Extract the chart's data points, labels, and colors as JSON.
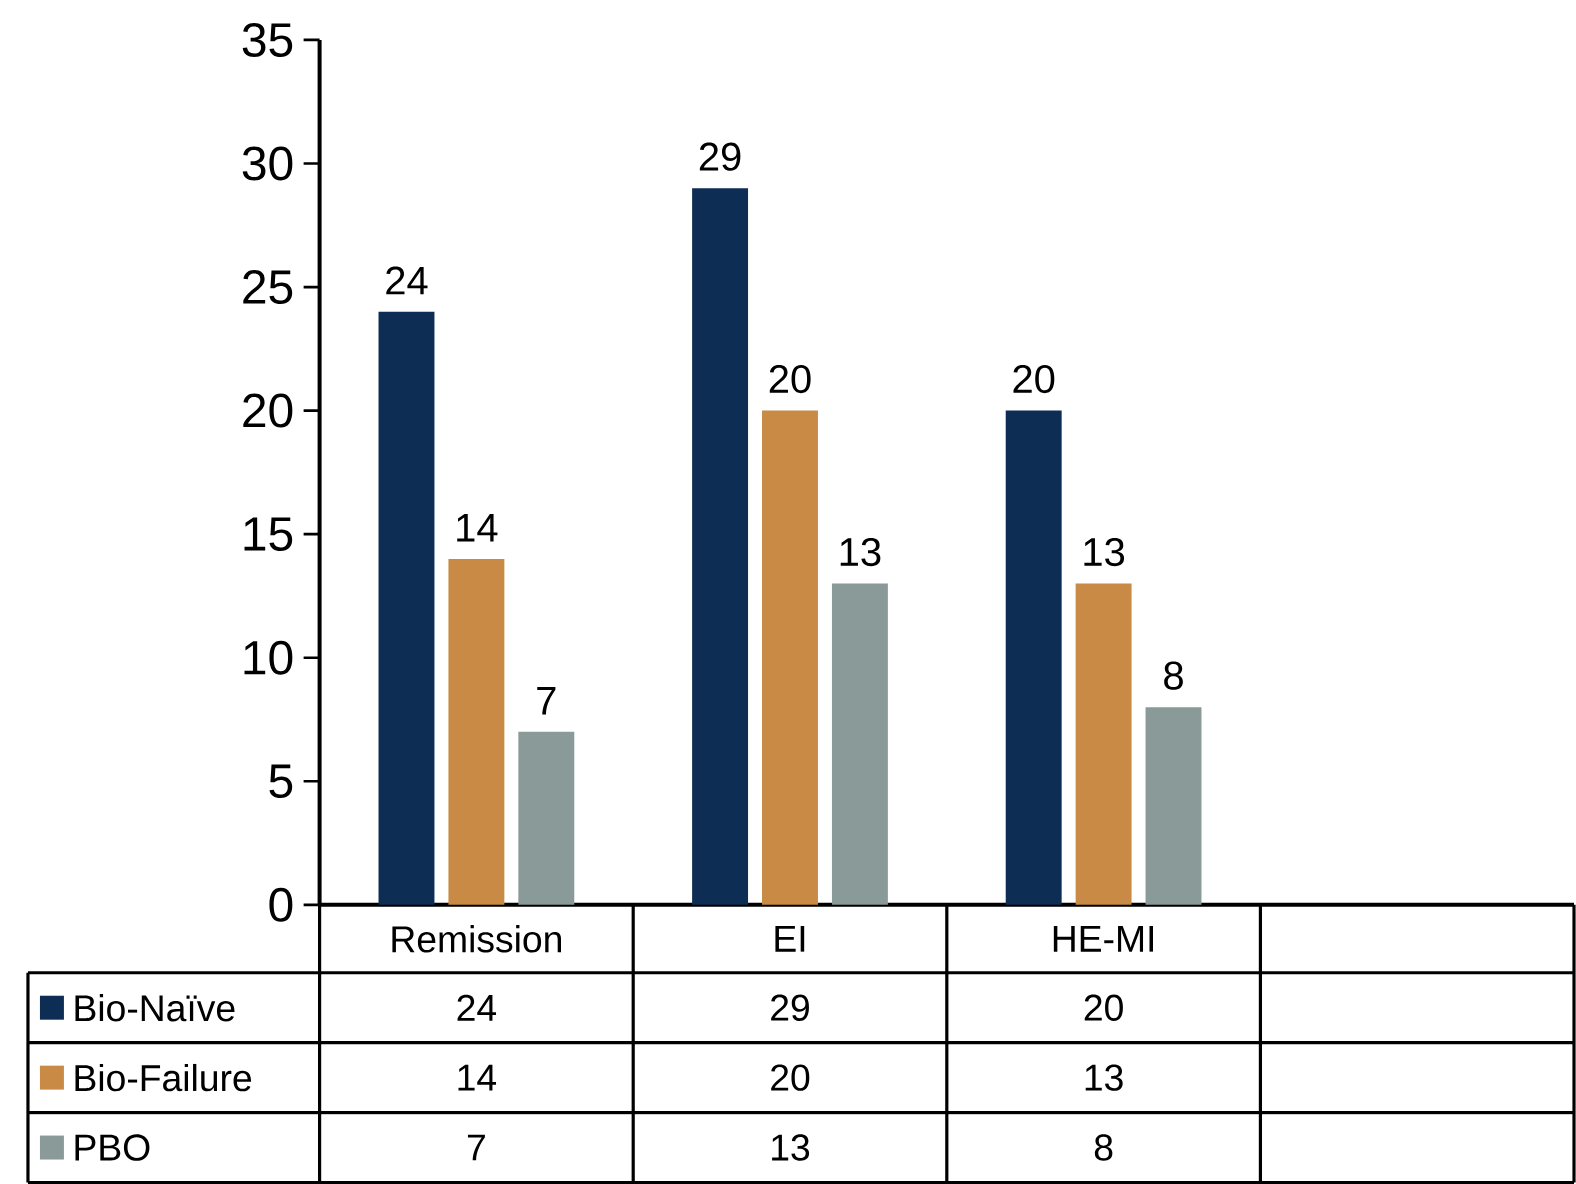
{
  "chart_data": {
    "type": "bar",
    "categories": [
      "Remission",
      "EI",
      "HE-MI",
      null
    ],
    "series": [
      {
        "name": "Bio-Naïve",
        "color": "#0d2d54",
        "values": [
          24,
          29,
          20,
          null
        ],
        "value_labels": [
          "24",
          "29",
          "20",
          null
        ]
      },
      {
        "name": "Bio-Failure",
        "color": "#c88a45",
        "values": [
          14,
          20,
          13,
          null
        ],
        "value_labels": [
          "14",
          "20",
          "13",
          null
        ]
      },
      {
        "name": "PBO",
        "color": "#8a9a98",
        "values": [
          7,
          13,
          8,
          null
        ],
        "value_labels": [
          "7",
          "13",
          "8",
          null
        ]
      }
    ],
    "ylim": [
      0,
      35
    ],
    "yticks": [
      0,
      5,
      10,
      15,
      20,
      25,
      30,
      35
    ],
    "data_labels": true,
    "legend": "bottom left",
    "grid": false
  }
}
